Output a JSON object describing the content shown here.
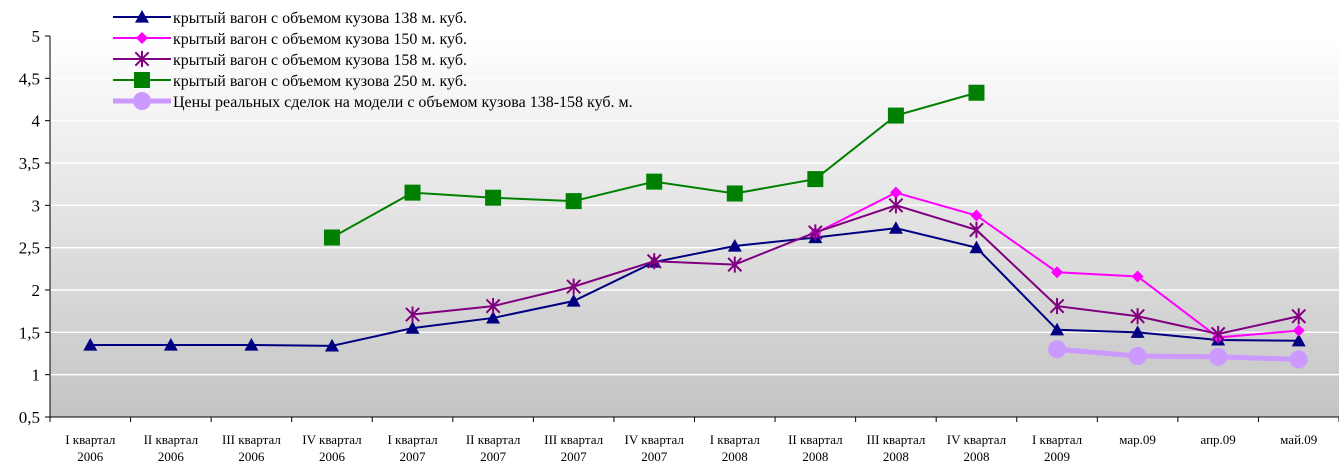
{
  "chart_data": {
    "type": "line",
    "title": "",
    "xlabel": "",
    "ylabel": "",
    "ylim": [
      0.5,
      5
    ],
    "yticks": [
      "0,5",
      "1",
      "1,5",
      "2",
      "2,5",
      "3",
      "3,5",
      "4",
      "4,5",
      "5"
    ],
    "grid": true,
    "legend_position": "top-left",
    "categories": [
      [
        "I квартал",
        "2006"
      ],
      [
        "II квартал",
        "2006"
      ],
      [
        "III квартал",
        "2006"
      ],
      [
        "IV квартал",
        "2006"
      ],
      [
        "I квартал",
        "2007"
      ],
      [
        "II квартал",
        "2007"
      ],
      [
        "III квартал",
        "2007"
      ],
      [
        "IV квартал",
        "2007"
      ],
      [
        "I квартал",
        "2008"
      ],
      [
        "II квартал",
        "2008"
      ],
      [
        "III квартал",
        "2008"
      ],
      [
        "IV квартал",
        "2008"
      ],
      [
        "I квартал",
        "2009"
      ],
      [
        "мар.09",
        ""
      ],
      [
        "апр.09",
        ""
      ],
      [
        "май.09",
        ""
      ]
    ],
    "series": [
      {
        "name": "крытый вагон с объемом кузова 138 м. куб.",
        "color": "#000080",
        "marker": "triangle",
        "values": [
          1.35,
          1.35,
          1.35,
          1.34,
          1.55,
          1.67,
          1.87,
          2.33,
          2.52,
          2.62,
          2.73,
          2.5,
          1.53,
          1.5,
          1.41,
          1.4
        ]
      },
      {
        "name": "крытый вагон с объемом кузова 150 м. куб.",
        "color": "#ff00ff",
        "marker": "diamond",
        "values": [
          null,
          null,
          null,
          null,
          null,
          null,
          null,
          null,
          null,
          2.67,
          3.15,
          2.88,
          2.21,
          2.16,
          1.44,
          1.52
        ]
      },
      {
        "name": "крытый вагон с объемом кузова 158 м. куб.",
        "color": "#800080",
        "marker": "star",
        "values": [
          null,
          null,
          null,
          null,
          1.71,
          1.81,
          2.04,
          2.34,
          2.3,
          2.68,
          3.0,
          2.71,
          1.81,
          1.69,
          1.48,
          1.69
        ]
      },
      {
        "name": "крытый вагон с объемом кузова 250 м. куб.",
        "color": "#008000",
        "marker": "square",
        "values": [
          null,
          null,
          null,
          2.62,
          3.15,
          3.09,
          3.05,
          3.28,
          3.14,
          3.31,
          4.06,
          4.33,
          null,
          null,
          null,
          null
        ]
      },
      {
        "name": "Цены реальных сделок на модели с объемом кузова 138-158 куб. м.",
        "color": "#cc99ff",
        "marker": "circle",
        "values": [
          null,
          null,
          null,
          null,
          null,
          null,
          null,
          null,
          null,
          null,
          null,
          null,
          1.3,
          1.22,
          1.21,
          1.18
        ]
      }
    ]
  }
}
